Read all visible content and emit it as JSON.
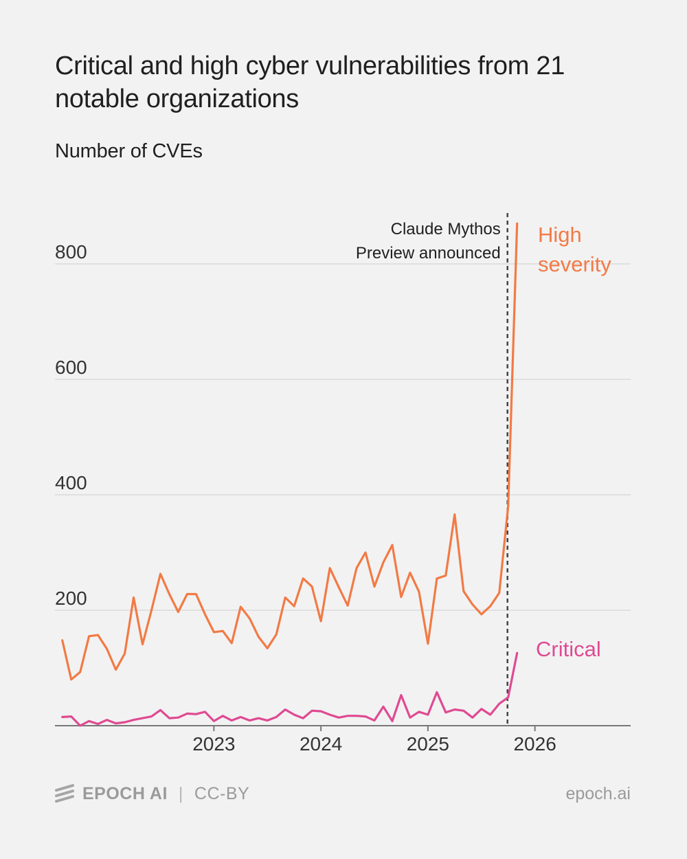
{
  "title": "Critical and high cyber vulnerabilities from 21 notable organizations",
  "subtitle": "Number of CVEs",
  "footer": {
    "brand": "EPOCH AI",
    "separator": "|",
    "license": "CC-BY",
    "site": "epoch.ai",
    "icon": "epoch-logo-icon"
  },
  "colors": {
    "background": "#f2f2f2",
    "high": "#f27a45",
    "critical": "#df4a92",
    "grid": "#d9d9d9",
    "axis": "#777777",
    "annotation_line": "#444444",
    "tick_text": "#333333",
    "footer_text": "#9a9a9a"
  },
  "chart_data": {
    "type": "line",
    "y_unit": "Number of CVEs",
    "ylim": [
      0,
      900
    ],
    "y_ticks": [
      "200",
      "400",
      "600",
      "800"
    ],
    "x_ticks": [
      "2023",
      "2024",
      "2025",
      "2026"
    ],
    "grid": "horizontal",
    "annotation": {
      "date": "2026-04",
      "lines": [
        "Claude Mythos",
        "Preview announced"
      ],
      "style": "dashed vertical line"
    },
    "x": [
      "2022-02",
      "2022-03",
      "2022-04",
      "2022-05",
      "2022-06",
      "2022-07",
      "2022-08",
      "2022-09",
      "2022-10",
      "2022-11",
      "2022-12",
      "2023-01",
      "2023-02",
      "2023-03",
      "2023-04",
      "2023-05",
      "2023-06",
      "2023-07",
      "2023-08",
      "2023-09",
      "2023-10",
      "2023-11",
      "2023-12",
      "2024-01",
      "2024-02",
      "2024-03",
      "2024-04",
      "2024-05",
      "2024-06",
      "2024-07",
      "2024-08",
      "2024-09",
      "2024-10",
      "2024-11",
      "2024-12",
      "2025-01",
      "2025-02",
      "2025-03",
      "2025-04",
      "2025-05",
      "2025-06",
      "2025-07",
      "2025-08",
      "2025-09",
      "2025-10",
      "2025-11",
      "2025-12",
      "2026-01",
      "2026-02",
      "2026-03",
      "2026-04",
      "2026-05"
    ],
    "series": [
      {
        "name": "High severity",
        "label_lines": [
          "High",
          "severity"
        ],
        "values": [
          148,
          80,
          93,
          155,
          157,
          133,
          97,
          125,
          222,
          141,
          200,
          263,
          228,
          197,
          228,
          228,
          193,
          162,
          164,
          143,
          206,
          186,
          154,
          134,
          158,
          222,
          207,
          255,
          241,
          181,
          273,
          240,
          208,
          273,
          300,
          241,
          283,
          313,
          223,
          265,
          232,
          142,
          255,
          260,
          366,
          233,
          210,
          193,
          207,
          230,
          380,
          870
        ]
      },
      {
        "name": "Critical",
        "label_lines": [
          "Critical"
        ],
        "values": [
          15,
          16,
          0,
          8,
          3,
          10,
          4,
          6,
          10,
          13,
          16,
          27,
          13,
          14,
          21,
          20,
          24,
          8,
          17,
          9,
          15,
          9,
          13,
          9,
          15,
          28,
          19,
          13,
          26,
          25,
          19,
          14,
          17,
          17,
          16,
          9,
          33,
          8,
          53,
          14,
          24,
          19,
          58,
          23,
          28,
          26,
          14,
          29,
          19,
          38,
          49,
          126
        ]
      }
    ]
  }
}
